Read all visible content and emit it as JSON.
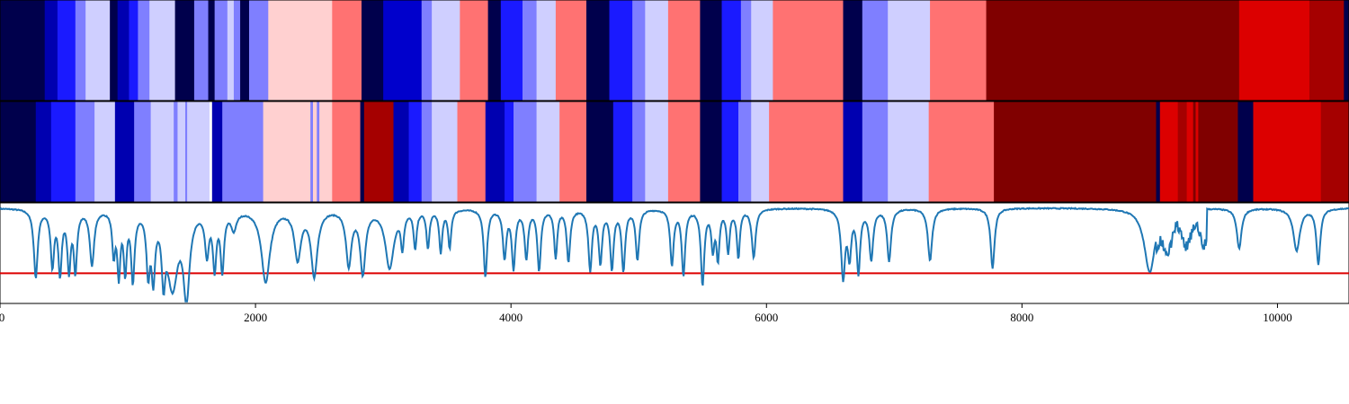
{
  "chart_data": [
    {
      "type": "heatmap",
      "name": "state-strip-top",
      "segments": [
        {
          "start": 0,
          "end": 350,
          "color": "#00004c"
        },
        {
          "start": 350,
          "end": 450,
          "color": "#0000b0"
        },
        {
          "start": 450,
          "end": 590,
          "color": "#1a1aff"
        },
        {
          "start": 590,
          "end": 670,
          "color": "#7f7fff"
        },
        {
          "start": 670,
          "end": 860,
          "color": "#cfcfff"
        },
        {
          "start": 860,
          "end": 920,
          "color": "#00004c"
        },
        {
          "start": 920,
          "end": 1010,
          "color": "#0000b0"
        },
        {
          "start": 1010,
          "end": 1080,
          "color": "#1a1aff"
        },
        {
          "start": 1080,
          "end": 1170,
          "color": "#7f7fff"
        },
        {
          "start": 1170,
          "end": 1370,
          "color": "#cfcfff"
        },
        {
          "start": 1370,
          "end": 1520,
          "color": "#00004c"
        },
        {
          "start": 1520,
          "end": 1630,
          "color": "#7f7fff"
        },
        {
          "start": 1630,
          "end": 1680,
          "color": "#00004c"
        },
        {
          "start": 1680,
          "end": 1780,
          "color": "#7f7fff"
        },
        {
          "start": 1780,
          "end": 1830,
          "color": "#cfcfff"
        },
        {
          "start": 1830,
          "end": 1880,
          "color": "#7f7fff"
        },
        {
          "start": 1880,
          "end": 1950,
          "color": "#00004c"
        },
        {
          "start": 1950,
          "end": 2100,
          "color": "#7f7fff"
        },
        {
          "start": 2100,
          "end": 2600,
          "color": "#ffd0d0"
        },
        {
          "start": 2600,
          "end": 2830,
          "color": "#ff7272"
        },
        {
          "start": 2830,
          "end": 3000,
          "color": "#00004c"
        },
        {
          "start": 3000,
          "end": 3300,
          "color": "#0000cc"
        },
        {
          "start": 3300,
          "end": 3380,
          "color": "#7f7fff"
        },
        {
          "start": 3380,
          "end": 3600,
          "color": "#cfcfff"
        },
        {
          "start": 3600,
          "end": 3820,
          "color": "#ff7272"
        },
        {
          "start": 3820,
          "end": 3920,
          "color": "#00004c"
        },
        {
          "start": 3920,
          "end": 4090,
          "color": "#1a1aff"
        },
        {
          "start": 4090,
          "end": 4200,
          "color": "#7f7fff"
        },
        {
          "start": 4200,
          "end": 4350,
          "color": "#cfcfff"
        },
        {
          "start": 4350,
          "end": 4590,
          "color": "#ff7272"
        },
        {
          "start": 4590,
          "end": 4770,
          "color": "#00004c"
        },
        {
          "start": 4770,
          "end": 4950,
          "color": "#1a1aff"
        },
        {
          "start": 4950,
          "end": 5050,
          "color": "#7f7fff"
        },
        {
          "start": 5050,
          "end": 5230,
          "color": "#cfcfff"
        },
        {
          "start": 5230,
          "end": 5480,
          "color": "#ff7272"
        },
        {
          "start": 5480,
          "end": 5650,
          "color": "#00004c"
        },
        {
          "start": 5650,
          "end": 5800,
          "color": "#1a1aff"
        },
        {
          "start": 5800,
          "end": 5880,
          "color": "#7f7fff"
        },
        {
          "start": 5880,
          "end": 6050,
          "color": "#cfcfff"
        },
        {
          "start": 6050,
          "end": 6600,
          "color": "#ff7272"
        },
        {
          "start": 6600,
          "end": 6750,
          "color": "#00004c"
        },
        {
          "start": 6750,
          "end": 6950,
          "color": "#7f7fff"
        },
        {
          "start": 6950,
          "end": 7280,
          "color": "#cfcfff"
        },
        {
          "start": 7280,
          "end": 7720,
          "color": "#ff7272"
        },
        {
          "start": 7720,
          "end": 9700,
          "color": "#800000"
        },
        {
          "start": 9700,
          "end": 10250,
          "color": "#dc0000"
        },
        {
          "start": 10250,
          "end": 10520,
          "color": "#a50000"
        },
        {
          "start": 10520,
          "end": 10560,
          "color": "#00004c"
        }
      ]
    },
    {
      "type": "heatmap",
      "name": "state-strip-middle",
      "segments": [
        {
          "start": 0,
          "end": 280,
          "color": "#00004c"
        },
        {
          "start": 280,
          "end": 400,
          "color": "#0000b0"
        },
        {
          "start": 400,
          "end": 590,
          "color": "#1a1aff"
        },
        {
          "start": 590,
          "end": 740,
          "color": "#7f7fff"
        },
        {
          "start": 740,
          "end": 900,
          "color": "#cfcfff"
        },
        {
          "start": 900,
          "end": 1050,
          "color": "#0000b0"
        },
        {
          "start": 1050,
          "end": 1180,
          "color": "#7f7fff"
        },
        {
          "start": 1180,
          "end": 1360,
          "color": "#cfcfff"
        },
        {
          "start": 1360,
          "end": 1390,
          "color": "#7f7fff"
        },
        {
          "start": 1390,
          "end": 1450,
          "color": "#cfcfff"
        },
        {
          "start": 1450,
          "end": 1465,
          "color": "#7f7fff"
        },
        {
          "start": 1465,
          "end": 1640,
          "color": "#cfcfff"
        },
        {
          "start": 1640,
          "end": 1660,
          "color": "#ffffff"
        },
        {
          "start": 1660,
          "end": 1740,
          "color": "#0000b0"
        },
        {
          "start": 1740,
          "end": 2060,
          "color": "#7f7fff"
        },
        {
          "start": 2060,
          "end": 2430,
          "color": "#ffd0d0"
        },
        {
          "start": 2430,
          "end": 2450,
          "color": "#7f7fff"
        },
        {
          "start": 2450,
          "end": 2480,
          "color": "#ffd0d0"
        },
        {
          "start": 2480,
          "end": 2500,
          "color": "#7f7fff"
        },
        {
          "start": 2500,
          "end": 2600,
          "color": "#ffd0d0"
        },
        {
          "start": 2600,
          "end": 2820,
          "color": "#ff7272"
        },
        {
          "start": 2820,
          "end": 2850,
          "color": "#00004c"
        },
        {
          "start": 2850,
          "end": 3080,
          "color": "#a50000"
        },
        {
          "start": 3080,
          "end": 3200,
          "color": "#0000b0"
        },
        {
          "start": 3200,
          "end": 3300,
          "color": "#1a1aff"
        },
        {
          "start": 3300,
          "end": 3380,
          "color": "#7f7fff"
        },
        {
          "start": 3380,
          "end": 3580,
          "color": "#cfcfff"
        },
        {
          "start": 3580,
          "end": 3800,
          "color": "#ff7272"
        },
        {
          "start": 3800,
          "end": 3950,
          "color": "#0000b0"
        },
        {
          "start": 3950,
          "end": 4020,
          "color": "#1a1aff"
        },
        {
          "start": 4020,
          "end": 4200,
          "color": "#7f7fff"
        },
        {
          "start": 4200,
          "end": 4380,
          "color": "#cfcfff"
        },
        {
          "start": 4380,
          "end": 4590,
          "color": "#ff7272"
        },
        {
          "start": 4590,
          "end": 4800,
          "color": "#00004c"
        },
        {
          "start": 4800,
          "end": 4950,
          "color": "#1a1aff"
        },
        {
          "start": 4950,
          "end": 5050,
          "color": "#7f7fff"
        },
        {
          "start": 5050,
          "end": 5230,
          "color": "#cfcfff"
        },
        {
          "start": 5230,
          "end": 5480,
          "color": "#ff7272"
        },
        {
          "start": 5480,
          "end": 5650,
          "color": "#00004c"
        },
        {
          "start": 5650,
          "end": 5780,
          "color": "#1a1aff"
        },
        {
          "start": 5780,
          "end": 5880,
          "color": "#7f7fff"
        },
        {
          "start": 5880,
          "end": 6020,
          "color": "#cfcfff"
        },
        {
          "start": 6020,
          "end": 6600,
          "color": "#ff7272"
        },
        {
          "start": 6600,
          "end": 6750,
          "color": "#0000b0"
        },
        {
          "start": 6750,
          "end": 6950,
          "color": "#7f7fff"
        },
        {
          "start": 6950,
          "end": 7270,
          "color": "#cfcfff"
        },
        {
          "start": 7270,
          "end": 7780,
          "color": "#ff7272"
        },
        {
          "start": 7780,
          "end": 9050,
          "color": "#800000"
        },
        {
          "start": 9050,
          "end": 9080,
          "color": "#00004c"
        },
        {
          "start": 9080,
          "end": 9220,
          "color": "#dc0000"
        },
        {
          "start": 9220,
          "end": 9290,
          "color": "#a50000"
        },
        {
          "start": 9290,
          "end": 9340,
          "color": "#dc0000"
        },
        {
          "start": 9340,
          "end": 9360,
          "color": "#800000"
        },
        {
          "start": 9360,
          "end": 9380,
          "color": "#dc0000"
        },
        {
          "start": 9380,
          "end": 9690,
          "color": "#800000"
        },
        {
          "start": 9690,
          "end": 9810,
          "color": "#00004c"
        },
        {
          "start": 9810,
          "end": 10340,
          "color": "#dc0000"
        },
        {
          "start": 10340,
          "end": 10560,
          "color": "#a50000"
        }
      ]
    },
    {
      "type": "line",
      "name": "signal-trace",
      "line_color": "#1f77b4",
      "threshold_color": "#dd0000",
      "xlim": [
        0,
        10560
      ],
      "ylim": [
        -0.75,
        0.25
      ],
      "threshold": -0.45,
      "baseline": 0.2,
      "x_ticks": [
        0,
        2000,
        4000,
        6000,
        8000,
        10000
      ],
      "x_tick_labels": [
        "0",
        "2000",
        "4000",
        "6000",
        "8000",
        "10000"
      ],
      "dips": [
        {
          "x": 280,
          "depth": 0.68,
          "width": 18
        },
        {
          "x": 410,
          "depth": 0.55,
          "width": 16
        },
        {
          "x": 470,
          "depth": 0.62,
          "width": 16
        },
        {
          "x": 540,
          "depth": 0.58,
          "width": 15
        },
        {
          "x": 590,
          "depth": 0.6,
          "width": 15
        },
        {
          "x": 720,
          "depth": 0.55,
          "width": 20
        },
        {
          "x": 890,
          "depth": 0.42,
          "width": 14
        },
        {
          "x": 930,
          "depth": 0.62,
          "width": 14
        },
        {
          "x": 980,
          "depth": 0.58,
          "width": 14
        },
        {
          "x": 1040,
          "depth": 0.68,
          "width": 16
        },
        {
          "x": 1160,
          "depth": 0.58,
          "width": 16
        },
        {
          "x": 1200,
          "depth": 0.62,
          "width": 16
        },
        {
          "x": 1280,
          "depth": 0.55,
          "width": 16
        },
        {
          "x": 1350,
          "depth": 0.75,
          "width": 50
        },
        {
          "x": 1460,
          "depth": 0.82,
          "width": 28
        },
        {
          "x": 1620,
          "depth": 0.42,
          "width": 18
        },
        {
          "x": 1680,
          "depth": 0.55,
          "width": 16
        },
        {
          "x": 1740,
          "depth": 0.58,
          "width": 16
        },
        {
          "x": 1830,
          "depth": 0.18,
          "width": 25
        },
        {
          "x": 2080,
          "depth": 0.72,
          "width": 40
        },
        {
          "x": 2330,
          "depth": 0.48,
          "width": 30
        },
        {
          "x": 2460,
          "depth": 0.65,
          "width": 30
        },
        {
          "x": 2730,
          "depth": 0.55,
          "width": 25
        },
        {
          "x": 2840,
          "depth": 0.62,
          "width": 25
        },
        {
          "x": 3050,
          "depth": 0.58,
          "width": 40
        },
        {
          "x": 3150,
          "depth": 0.35,
          "width": 14
        },
        {
          "x": 3250,
          "depth": 0.38,
          "width": 14
        },
        {
          "x": 3350,
          "depth": 0.38,
          "width": 14
        },
        {
          "x": 3450,
          "depth": 0.42,
          "width": 14
        },
        {
          "x": 3520,
          "depth": 0.38,
          "width": 14
        },
        {
          "x": 3800,
          "depth": 0.68,
          "width": 16
        },
        {
          "x": 3950,
          "depth": 0.48,
          "width": 16
        },
        {
          "x": 4020,
          "depth": 0.58,
          "width": 16
        },
        {
          "x": 4120,
          "depth": 0.48,
          "width": 16
        },
        {
          "x": 4220,
          "depth": 0.6,
          "width": 16
        },
        {
          "x": 4350,
          "depth": 0.48,
          "width": 14
        },
        {
          "x": 4450,
          "depth": 0.52,
          "width": 16
        },
        {
          "x": 4620,
          "depth": 0.6,
          "width": 16
        },
        {
          "x": 4700,
          "depth": 0.52,
          "width": 16
        },
        {
          "x": 4790,
          "depth": 0.58,
          "width": 16
        },
        {
          "x": 4880,
          "depth": 0.6,
          "width": 16
        },
        {
          "x": 4990,
          "depth": 0.5,
          "width": 16
        },
        {
          "x": 5260,
          "depth": 0.55,
          "width": 16
        },
        {
          "x": 5350,
          "depth": 0.65,
          "width": 16
        },
        {
          "x": 5500,
          "depth": 0.75,
          "width": 16
        },
        {
          "x": 5580,
          "depth": 0.38,
          "width": 14
        },
        {
          "x": 5620,
          "depth": 0.48,
          "width": 14
        },
        {
          "x": 5700,
          "depth": 0.42,
          "width": 14
        },
        {
          "x": 5780,
          "depth": 0.48,
          "width": 14
        },
        {
          "x": 5900,
          "depth": 0.48,
          "width": 18
        },
        {
          "x": 6600,
          "depth": 0.68,
          "width": 18
        },
        {
          "x": 6650,
          "depth": 0.45,
          "width": 16
        },
        {
          "x": 6720,
          "depth": 0.62,
          "width": 16
        },
        {
          "x": 6820,
          "depth": 0.5,
          "width": 18
        },
        {
          "x": 6960,
          "depth": 0.52,
          "width": 18
        },
        {
          "x": 7280,
          "depth": 0.52,
          "width": 20
        },
        {
          "x": 7770,
          "depth": 0.6,
          "width": 18
        },
        {
          "x": 9000,
          "depth": 0.64,
          "width": 50
        },
        {
          "x": 9700,
          "depth": 0.4,
          "width": 22
        },
        {
          "x": 10150,
          "depth": 0.42,
          "width": 30
        },
        {
          "x": 10320,
          "depth": 0.55,
          "width": 18
        }
      ]
    }
  ]
}
